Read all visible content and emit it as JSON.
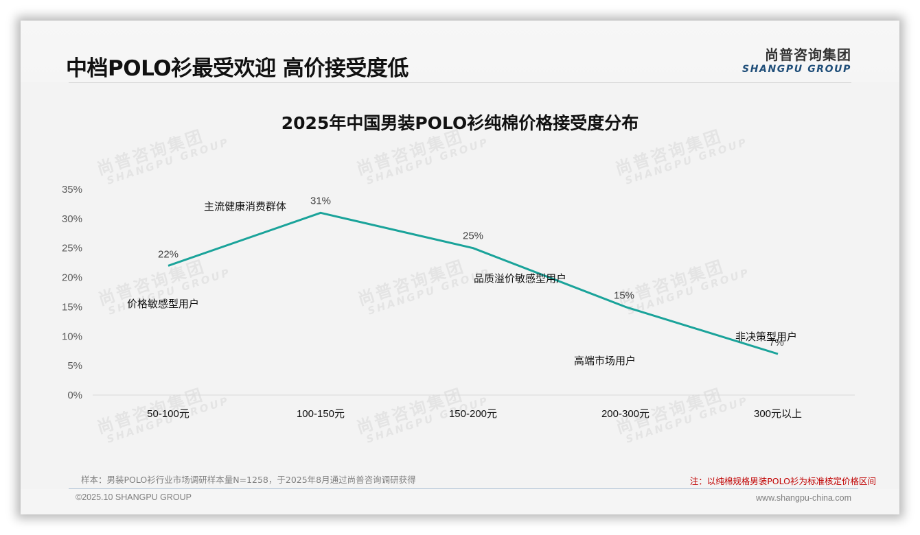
{
  "header": {
    "title": "中档POLO衫最受欢迎 高价接受度低",
    "logo_cn": "尚普咨询集团",
    "logo_en": "SHANGPU GROUP"
  },
  "watermark": {
    "cn": "尚普咨询集团",
    "en": "SHANGPU GROUP"
  },
  "chart_data": {
    "type": "line",
    "title": "2025年中国男装POLO衫纯棉价格接受度分布",
    "categories": [
      "50-100元",
      "100-150元",
      "150-200元",
      "200-300元",
      "300元以上"
    ],
    "series": [
      {
        "name": "价格接受度",
        "values": [
          22,
          31,
          25,
          15,
          7
        ],
        "color": "#1aa39a"
      }
    ],
    "data_labels": [
      "22%",
      "31%",
      "25%",
      "15%",
      "7%"
    ],
    "annotations": [
      "价格敏感型用户",
      "主流健康消费群体",
      "品质溢价敏感型用户",
      "高端市场用户",
      "非决策型用户"
    ],
    "y_ticks": [
      "0%",
      "5%",
      "10%",
      "15%",
      "20%",
      "25%",
      "30%",
      "35%"
    ],
    "ylim": [
      0,
      35
    ],
    "xlabel": "",
    "ylabel": "",
    "grid": false,
    "legend": "none"
  },
  "footer": {
    "sample_note": "样本：男装POLO衫行业市场调研样本量N=1258，于2025年8月通过尚普咨询调研获得",
    "note": "注：以纯棉规格男装POLO衫为标准核定价格区间",
    "copyright": "©2025.10 SHANGPU GROUP",
    "website": "www.shangpu-china.com"
  },
  "colors": {
    "line": "#1aa39a",
    "note_red": "#c00000",
    "logo_blue": "#1f4e79"
  }
}
